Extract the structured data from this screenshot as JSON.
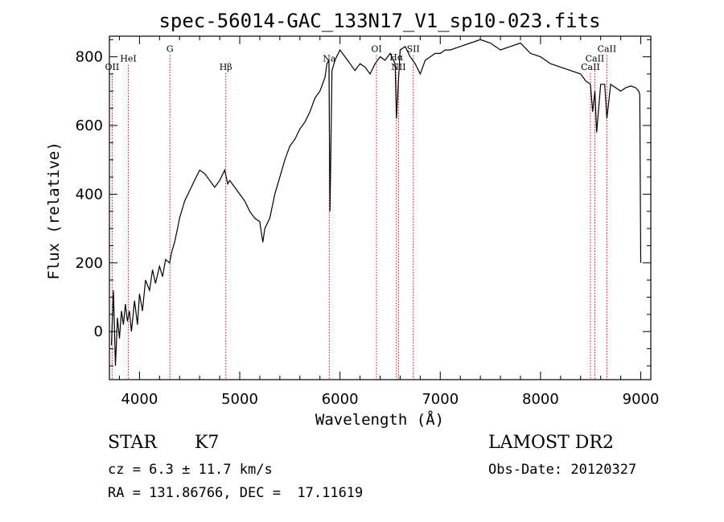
{
  "chart_data": {
    "type": "line",
    "title": "spec-56014-GAC_133N17_V1_sp10-023.fits",
    "xlabel": "Wavelength (Å)",
    "ylabel": "Flux (relative)",
    "xlim": [
      3700,
      9100
    ],
    "ylim": [
      -140,
      860
    ],
    "xticks": [
      4000,
      5000,
      6000,
      7000,
      8000,
      9000
    ],
    "yticks": [
      0,
      200,
      400,
      600,
      800
    ],
    "grid": false,
    "line_color": "#000000",
    "marker_color": "#cc0000",
    "series": [
      {
        "x": [
          3720,
          3740,
          3760,
          3780,
          3800,
          3820,
          3840,
          3860,
          3880,
          3900,
          3920,
          3950,
          3980,
          4000,
          4030,
          4060,
          4100,
          4130,
          4160,
          4200,
          4230,
          4260,
          4300,
          4320,
          4350,
          4380,
          4400,
          4450,
          4500,
          4550,
          4600,
          4650,
          4700,
          4750,
          4800,
          4850,
          4880,
          4900,
          4950,
          5000,
          5050,
          5100,
          5150,
          5200,
          5230,
          5250,
          5300,
          5350,
          5400,
          5450,
          5500,
          5550,
          5600,
          5650,
          5700,
          5750,
          5800,
          5850,
          5870,
          5890,
          5900,
          5920,
          5950,
          6000,
          6050,
          6100,
          6150,
          6200,
          6250,
          6300,
          6350,
          6400,
          6450,
          6500,
          6550,
          6563,
          6600,
          6650,
          6700,
          6750,
          6800,
          6850,
          6900,
          6950,
          7000,
          7050,
          7100,
          7200,
          7300,
          7400,
          7500,
          7600,
          7700,
          7800,
          7900,
          8000,
          8100,
          8200,
          8300,
          8400,
          8450,
          8498,
          8520,
          8542,
          8560,
          8600,
          8640,
          8662,
          8700,
          8750,
          8800,
          8850,
          8900,
          8950,
          8980,
          8990,
          9000
        ],
        "y": [
          -40,
          120,
          -100,
          40,
          -20,
          60,
          20,
          80,
          30,
          60,
          0,
          90,
          20,
          110,
          60,
          150,
          120,
          180,
          140,
          190,
          160,
          210,
          200,
          230,
          260,
          300,
          330,
          380,
          410,
          440,
          470,
          460,
          440,
          420,
          440,
          470,
          430,
          440,
          420,
          400,
          380,
          350,
          330,
          320,
          260,
          300,
          330,
          400,
          450,
          500,
          540,
          560,
          590,
          610,
          640,
          680,
          700,
          740,
          780,
          790,
          350,
          760,
          790,
          820,
          800,
          780,
          760,
          780,
          770,
          750,
          780,
          800,
          790,
          810,
          780,
          620,
          820,
          830,
          800,
          780,
          750,
          790,
          800,
          810,
          810,
          820,
          820,
          830,
          840,
          850,
          840,
          820,
          830,
          840,
          810,
          800,
          780,
          770,
          760,
          750,
          730,
          720,
          640,
          700,
          580,
          720,
          720,
          620,
          720,
          710,
          700,
          710,
          715,
          710,
          700,
          690,
          200
        ]
      }
    ],
    "line_markers": [
      {
        "label": "OII",
        "x": 3727,
        "label_y": 762
      },
      {
        "label": "HeI",
        "x": 3889,
        "label_y": 786
      },
      {
        "label": "G",
        "x": 4304,
        "label_y": 814
      },
      {
        "label": "Hβ",
        "x": 4861,
        "label_y": 762
      },
      {
        "label": "Na",
        "x": 5893,
        "label_y": 786
      },
      {
        "label": "OI",
        "x": 6364,
        "label_y": 814
      },
      {
        "label": "Hα",
        "x": 6563,
        "label_y": 790
      },
      {
        "label": "NII",
        "x": 6584,
        "label_y": 762
      },
      {
        "label": "SII",
        "x": 6731,
        "label_y": 814
      },
      {
        "label": "CaII",
        "x": 8498,
        "label_y": 762
      },
      {
        "label": "CaII",
        "x": 8542,
        "label_y": 786
      },
      {
        "label": "CaII",
        "x": 8662,
        "label_y": 814
      }
    ]
  },
  "info": {
    "object_class": "STAR",
    "subclass": "K7",
    "redshift_text": "cz = 6.3 ± 11.7 km/s",
    "coords_text": "RA = 131.86766, DEC =  17.11619",
    "survey": "LAMOST DR2",
    "obs_date": "Obs-Date: 20120327"
  }
}
